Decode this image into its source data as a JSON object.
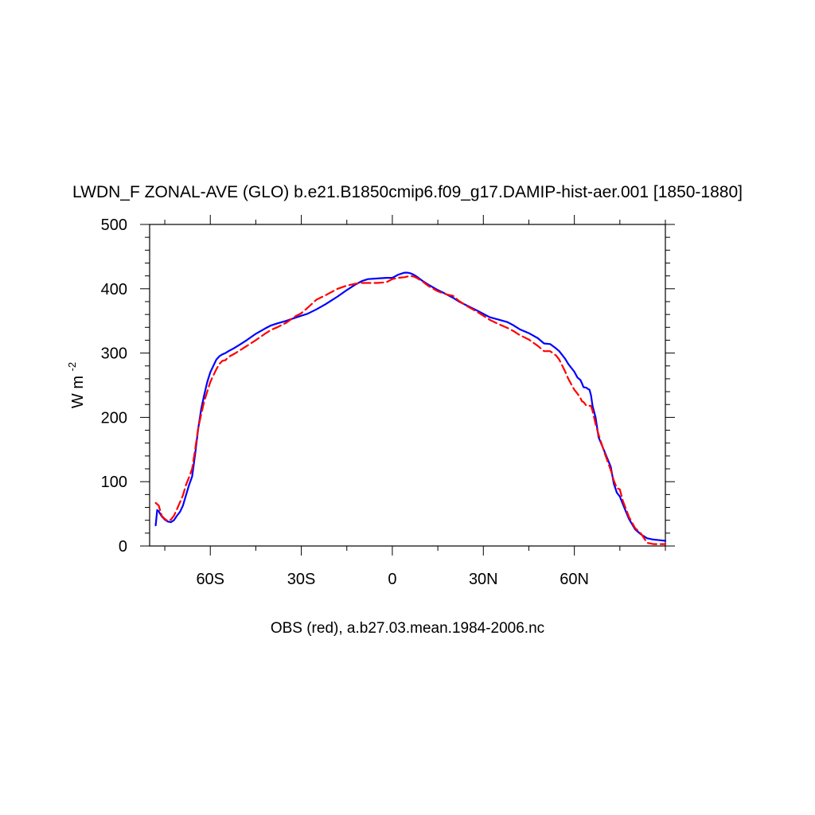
{
  "chart_data": {
    "type": "line",
    "title": "LWDN_F ZONAL-AVE (GLO) b.e21.B1850cmip6.f09_g17.DAMIP-hist-aer.001 [1850-1880]",
    "ylabel": "W m",
    "ylabel_sup": "-2",
    "caption": "OBS (red), a.b27.03.mean.1984-2006.nc",
    "xlim": [
      -80,
      90
    ],
    "ylim": [
      0,
      500
    ],
    "xticks": [
      -60,
      -30,
      0,
      30,
      60
    ],
    "xtick_labels": [
      "60S",
      "30S",
      "0",
      "30N",
      "60N"
    ],
    "yticks": [
      0,
      100,
      200,
      300,
      400,
      500
    ],
    "ytick_labels": [
      "0",
      "100",
      "200",
      "300",
      "400",
      "500"
    ],
    "grid": false,
    "series": [
      {
        "color": "#0000ff",
        "dash": "solid",
        "x": [
          -78,
          -77.5,
          -77,
          -76,
          -75,
          -74,
          -73,
          -72,
          -71,
          -70,
          -69,
          -68,
          -67,
          -66,
          -65,
          -64,
          -63,
          -62,
          -61,
          -60,
          -59,
          -58,
          -57,
          -56,
          -55,
          -54,
          -52,
          -50,
          -48,
          -45,
          -42,
          -40,
          -38,
          -35,
          -32,
          -30,
          -28,
          -25,
          -22,
          -20,
          -18,
          -15,
          -12,
          -10,
          -8,
          -5,
          -2,
          0,
          2,
          4,
          5,
          6,
          7,
          8,
          10,
          12,
          15,
          18,
          20,
          22,
          25,
          28,
          30,
          32,
          35,
          38,
          40,
          42,
          45,
          48,
          50,
          52,
          54,
          55,
          57,
          58,
          60,
          61,
          62,
          62.5,
          63,
          64,
          64.5,
          65,
          65.5,
          66,
          67,
          68,
          70,
          72,
          73,
          74,
          75,
          76,
          78,
          80,
          82,
          84,
          86,
          88,
          90
        ],
        "y": [
          32,
          56,
          54,
          46,
          41,
          38,
          37,
          40,
          47,
          53,
          63,
          79,
          95,
          108,
          143,
          182,
          213,
          235,
          255,
          270,
          280,
          290,
          295,
          298,
          300,
          303,
          308,
          314,
          320,
          330,
          338,
          343,
          346,
          350,
          355,
          358,
          361,
          368,
          376,
          382,
          388,
          398,
          407,
          412,
          415,
          416,
          417,
          417,
          422,
          425,
          425,
          424,
          422,
          419,
          412,
          406,
          398,
          391,
          386,
          380,
          373,
          366,
          361,
          356,
          352,
          348,
          343,
          337,
          331,
          323,
          315,
          314,
          307,
          303,
          291,
          283,
          271,
          262,
          258,
          253,
          247,
          246,
          244,
          243,
          234,
          218,
          200,
          169,
          146,
          123,
          97,
          83,
          77,
          65,
          42,
          26,
          18,
          12,
          10,
          9,
          8
        ]
      },
      {
        "color": "#ff0000",
        "dash": "dashed",
        "x": [
          -78,
          -77.5,
          -77,
          -76,
          -75,
          -74,
          -73,
          -72,
          -71,
          -70,
          -69,
          -68,
          -67,
          -66,
          -65,
          -64,
          -63,
          -62,
          -61,
          -60,
          -59,
          -58,
          -57,
          -56,
          -55,
          -54,
          -52,
          -50,
          -48,
          -45,
          -42,
          -40,
          -38,
          -35,
          -32,
          -30,
          -28,
          -25,
          -22,
          -20,
          -18,
          -15,
          -12,
          -10,
          -8,
          -5,
          -2,
          0,
          2,
          4,
          5,
          6,
          7,
          8,
          10,
          12,
          15,
          18,
          20,
          22,
          25,
          28,
          30,
          32,
          35,
          38,
          40,
          42,
          45,
          48,
          50,
          52,
          54,
          55,
          57,
          58,
          60,
          61,
          62,
          62.5,
          63,
          64,
          64.5,
          65,
          65.5,
          66,
          67,
          68,
          70,
          72,
          73,
          74,
          75,
          76,
          78,
          80,
          82,
          84,
          86,
          88,
          90
        ],
        "y": [
          67,
          65,
          63,
          47,
          42,
          39,
          41,
          47,
          57,
          68,
          79,
          95,
          107,
          120,
          150,
          183,
          205,
          225,
          240,
          255,
          265,
          275,
          283,
          288,
          289,
          294,
          299,
          305,
          311,
          320,
          330,
          336,
          340,
          347,
          357,
          362,
          370,
          383,
          390,
          395,
          400,
          405,
          408,
          409,
          409,
          409,
          410,
          415,
          417,
          418,
          419,
          420,
          419,
          417,
          411,
          404,
          396,
          391,
          389,
          381,
          372,
          364,
          358,
          352,
          345,
          339,
          334,
          328,
          321,
          311,
          303,
          303,
          296,
          290,
          271,
          260,
          243,
          237,
          230,
          225,
          224,
          218,
          218,
          218,
          218,
          210,
          190,
          173,
          144,
          118,
          102,
          90,
          88,
          70,
          45,
          28,
          19,
          5,
          3,
          3,
          3
        ]
      }
    ]
  }
}
